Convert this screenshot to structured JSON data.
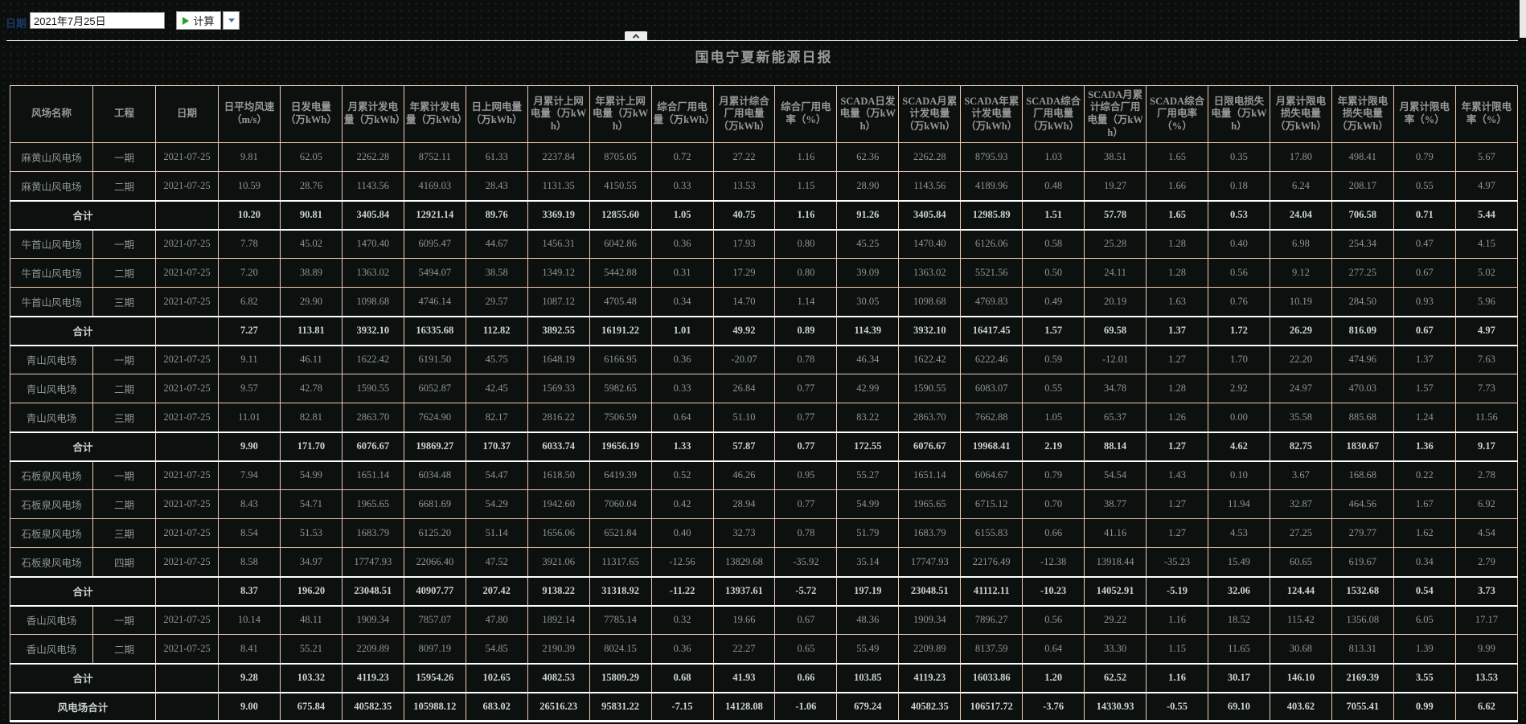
{
  "toolbar": {
    "date_label": "日期",
    "date_value": "2021年7月25日",
    "calc_label": "计算"
  },
  "title": "国电宁夏新能源日报",
  "icons": {
    "calendar-icon": "blue grid calendar",
    "run-icon": "green play triangle",
    "dropdown-arrow-icon": "blue down caret",
    "collapse-icon": "up chevron tab",
    "scrollbar-strip": "white vertical strip"
  },
  "colors": {
    "background": "#0a0e0c",
    "table_border": "#f0c7b4",
    "subtotal_border": "#ffffff",
    "header_text": "#979797",
    "cell_text": "#8e958f",
    "subtotal_text": "#ccd3cd",
    "accent_green": "#1fa32a",
    "date_label_navy": "#1d3a6b"
  },
  "table": {
    "headers": [
      "风场名称",
      "工程",
      "日期",
      "日平均风速（m/s）",
      "日发电量（万kWh）",
      "月累计发电量（万kWh）",
      "年累计发电量（万kWh）",
      "日上网电量（万kWh）",
      "月累计上网电量（万kWh）",
      "年累计上网电量（万kWh）",
      "综合厂用电量（万kWh）",
      "月累计综合厂用电量（万kWh）",
      "综合厂用电率（%）",
      "SCADA日发电量（万kWh）",
      "SCADA月累计发电量（万kWh）",
      "SCADA年累计发电量（万kWh）",
      "SCADA综合厂用电量（万kWh）",
      "SCADA月累计综合厂用电量（万kWh）",
      "SCADA综合厂用电率（%）",
      "日限电损失电量（万kWh）",
      "月累计限电损失电量（万kWh）",
      "年累计限电损失电量（万kWh）",
      "月累计限电率（%）",
      "年累计限电率（%）"
    ],
    "rows": [
      {
        "type": "data",
        "farm": "麻黄山风电场",
        "phase": "一期",
        "date": "2021-07-25",
        "values": [
          "9.81",
          "62.05",
          "2262.28",
          "8752.11",
          "61.33",
          "2237.84",
          "8705.05",
          "0.72",
          "27.22",
          "1.16",
          "62.36",
          "2262.28",
          "8795.93",
          "1.03",
          "38.51",
          "1.65",
          "0.35",
          "17.80",
          "498.41",
          "0.79",
          "5.67"
        ]
      },
      {
        "type": "data",
        "farm": "麻黄山风电场",
        "phase": "二期",
        "date": "2021-07-25",
        "values": [
          "10.59",
          "28.76",
          "1143.56",
          "4169.03",
          "28.43",
          "1131.35",
          "4150.55",
          "0.33",
          "13.53",
          "1.15",
          "28.90",
          "1143.56",
          "4189.96",
          "0.48",
          "19.27",
          "1.66",
          "0.18",
          "6.24",
          "208.17",
          "0.55",
          "4.97"
        ]
      },
      {
        "type": "subtotal",
        "farm": "合计",
        "phase": "",
        "date": "",
        "values": [
          "10.20",
          "90.81",
          "3405.84",
          "12921.14",
          "89.76",
          "3369.19",
          "12855.60",
          "1.05",
          "40.75",
          "1.16",
          "91.26",
          "3405.84",
          "12985.89",
          "1.51",
          "57.78",
          "1.65",
          "0.53",
          "24.04",
          "706.58",
          "0.71",
          "5.44"
        ]
      },
      {
        "type": "data",
        "farm": "牛首山风电场",
        "phase": "一期",
        "date": "2021-07-25",
        "values": [
          "7.78",
          "45.02",
          "1470.40",
          "6095.47",
          "44.67",
          "1456.31",
          "6042.86",
          "0.36",
          "17.93",
          "0.80",
          "45.25",
          "1470.40",
          "6126.06",
          "0.58",
          "25.28",
          "1.28",
          "0.40",
          "6.98",
          "254.34",
          "0.47",
          "4.15"
        ]
      },
      {
        "type": "data",
        "farm": "牛首山风电场",
        "phase": "二期",
        "date": "2021-07-25",
        "values": [
          "7.20",
          "38.89",
          "1363.02",
          "5494.07",
          "38.58",
          "1349.12",
          "5442.88",
          "0.31",
          "17.29",
          "0.80",
          "39.09",
          "1363.02",
          "5521.56",
          "0.50",
          "24.11",
          "1.28",
          "0.56",
          "9.12",
          "277.25",
          "0.67",
          "5.02"
        ]
      },
      {
        "type": "data",
        "farm": "牛首山风电场",
        "phase": "三期",
        "date": "2021-07-25",
        "values": [
          "6.82",
          "29.90",
          "1098.68",
          "4746.14",
          "29.57",
          "1087.12",
          "4705.48",
          "0.34",
          "14.70",
          "1.14",
          "30.05",
          "1098.68",
          "4769.83",
          "0.49",
          "20.19",
          "1.63",
          "0.76",
          "10.19",
          "284.50",
          "0.93",
          "5.96"
        ]
      },
      {
        "type": "subtotal",
        "farm": "合计",
        "phase": "",
        "date": "",
        "values": [
          "7.27",
          "113.81",
          "3932.10",
          "16335.68",
          "112.82",
          "3892.55",
          "16191.22",
          "1.01",
          "49.92",
          "0.89",
          "114.39",
          "3932.10",
          "16417.45",
          "1.57",
          "69.58",
          "1.37",
          "1.72",
          "26.29",
          "816.09",
          "0.67",
          "4.97"
        ]
      },
      {
        "type": "data",
        "farm": "青山风电场",
        "phase": "一期",
        "date": "2021-07-25",
        "values": [
          "9.11",
          "46.11",
          "1622.42",
          "6191.50",
          "45.75",
          "1648.19",
          "6166.95",
          "0.36",
          "-20.07",
          "0.78",
          "46.34",
          "1622.42",
          "6222.46",
          "0.59",
          "-12.01",
          "1.27",
          "1.70",
          "22.20",
          "474.96",
          "1.37",
          "7.63"
        ]
      },
      {
        "type": "data",
        "farm": "青山风电场",
        "phase": "二期",
        "date": "2021-07-25",
        "values": [
          "9.57",
          "42.78",
          "1590.55",
          "6052.87",
          "42.45",
          "1569.33",
          "5982.65",
          "0.33",
          "26.84",
          "0.77",
          "42.99",
          "1590.55",
          "6083.07",
          "0.55",
          "34.78",
          "1.28",
          "2.92",
          "24.97",
          "470.03",
          "1.57",
          "7.73"
        ]
      },
      {
        "type": "data",
        "farm": "青山风电场",
        "phase": "三期",
        "date": "2021-07-25",
        "values": [
          "11.01",
          "82.81",
          "2863.70",
          "7624.90",
          "82.17",
          "2816.22",
          "7506.59",
          "0.64",
          "51.10",
          "0.77",
          "83.22",
          "2863.70",
          "7662.88",
          "1.05",
          "65.37",
          "1.26",
          "0.00",
          "35.58",
          "885.68",
          "1.24",
          "11.56"
        ]
      },
      {
        "type": "subtotal",
        "farm": "合计",
        "phase": "",
        "date": "",
        "values": [
          "9.90",
          "171.70",
          "6076.67",
          "19869.27",
          "170.37",
          "6033.74",
          "19656.19",
          "1.33",
          "57.87",
          "0.77",
          "172.55",
          "6076.67",
          "19968.41",
          "2.19",
          "88.14",
          "1.27",
          "4.62",
          "82.75",
          "1830.67",
          "1.36",
          "9.17"
        ]
      },
      {
        "type": "data",
        "farm": "石板泉风电场",
        "phase": "一期",
        "date": "2021-07-25",
        "values": [
          "7.94",
          "54.99",
          "1651.14",
          "6034.48",
          "54.47",
          "1618.50",
          "6419.39",
          "0.52",
          "46.26",
          "0.95",
          "55.27",
          "1651.14",
          "6064.67",
          "0.79",
          "54.54",
          "1.43",
          "0.10",
          "3.67",
          "168.68",
          "0.22",
          "2.78"
        ]
      },
      {
        "type": "data",
        "farm": "石板泉风电场",
        "phase": "二期",
        "date": "2021-07-25",
        "values": [
          "8.43",
          "54.71",
          "1965.65",
          "6681.69",
          "54.29",
          "1942.60",
          "7060.04",
          "0.42",
          "28.94",
          "0.77",
          "54.99",
          "1965.65",
          "6715.12",
          "0.70",
          "38.77",
          "1.27",
          "11.94",
          "32.87",
          "464.56",
          "1.67",
          "6.92"
        ]
      },
      {
        "type": "data",
        "farm": "石板泉风电场",
        "phase": "三期",
        "date": "2021-07-25",
        "values": [
          "8.54",
          "51.53",
          "1683.79",
          "6125.20",
          "51.14",
          "1656.06",
          "6521.84",
          "0.40",
          "32.73",
          "0.78",
          "51.79",
          "1683.79",
          "6155.83",
          "0.66",
          "41.16",
          "1.27",
          "4.53",
          "27.25",
          "279.77",
          "1.62",
          "4.54"
        ]
      },
      {
        "type": "data",
        "farm": "石板泉风电场",
        "phase": "四期",
        "date": "2021-07-25",
        "values": [
          "8.58",
          "34.97",
          "17747.93",
          "22066.40",
          "47.52",
          "3921.06",
          "11317.65",
          "-12.56",
          "13829.68",
          "-35.92",
          "35.14",
          "17747.93",
          "22176.49",
          "-12.38",
          "13918.44",
          "-35.23",
          "15.49",
          "60.65",
          "619.67",
          "0.34",
          "2.79"
        ]
      },
      {
        "type": "subtotal",
        "farm": "合计",
        "phase": "",
        "date": "",
        "values": [
          "8.37",
          "196.20",
          "23048.51",
          "40907.77",
          "207.42",
          "9138.22",
          "31318.92",
          "-11.22",
          "13937.61",
          "-5.72",
          "197.19",
          "23048.51",
          "41112.11",
          "-10.23",
          "14052.91",
          "-5.19",
          "32.06",
          "124.44",
          "1532.68",
          "0.54",
          "3.73"
        ]
      },
      {
        "type": "data",
        "farm": "香山风电场",
        "phase": "一期",
        "date": "2021-07-25",
        "values": [
          "10.14",
          "48.11",
          "1909.34",
          "7857.07",
          "47.80",
          "1892.14",
          "7785.14",
          "0.32",
          "19.66",
          "0.67",
          "48.36",
          "1909.34",
          "7896.27",
          "0.56",
          "29.22",
          "1.16",
          "18.52",
          "115.42",
          "1356.08",
          "6.05",
          "17.17"
        ]
      },
      {
        "type": "data",
        "farm": "香山风电场",
        "phase": "二期",
        "date": "2021-07-25",
        "values": [
          "8.41",
          "55.21",
          "2209.89",
          "8097.19",
          "54.85",
          "2190.39",
          "8024.15",
          "0.36",
          "22.27",
          "0.65",
          "55.49",
          "2209.89",
          "8137.59",
          "0.64",
          "33.30",
          "1.15",
          "11.65",
          "30.68",
          "813.31",
          "1.39",
          "9.99"
        ]
      },
      {
        "type": "subtotal",
        "farm": "合计",
        "phase": "",
        "date": "",
        "values": [
          "9.28",
          "103.32",
          "4119.23",
          "15954.26",
          "102.65",
          "4082.53",
          "15809.29",
          "0.68",
          "41.93",
          "0.66",
          "103.85",
          "4119.23",
          "16033.86",
          "1.20",
          "62.52",
          "1.16",
          "30.17",
          "146.10",
          "2169.39",
          "3.55",
          "13.53"
        ]
      },
      {
        "type": "grand",
        "farm": "风电场合计",
        "phase": "",
        "date": "",
        "values": [
          "9.00",
          "675.84",
          "40582.35",
          "105988.12",
          "683.02",
          "26516.23",
          "95831.22",
          "-7.15",
          "14128.08",
          "-1.06",
          "679.24",
          "40582.35",
          "106517.72",
          "-3.76",
          "14330.93",
          "-0.55",
          "69.10",
          "403.62",
          "7055.41",
          "0.99",
          "6.62"
        ]
      }
    ]
  }
}
